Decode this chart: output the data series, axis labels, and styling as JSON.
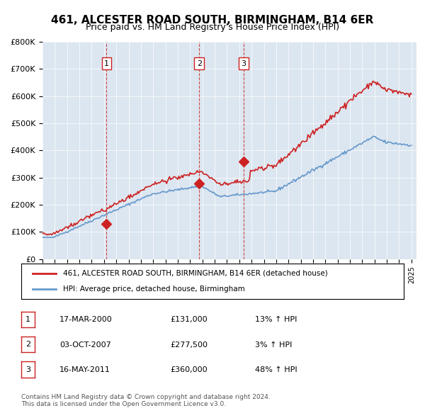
{
  "title": "461, ALCESTER ROAD SOUTH, BIRMINGHAM, B14 6ER",
  "subtitle": "Price paid vs. HM Land Registry's House Price Index (HPI)",
  "title_fontsize": 12,
  "subtitle_fontsize": 10,
  "background_color": "#dce6f0",
  "plot_bg_color": "#dce6f0",
  "ylim": [
    0,
    800000
  ],
  "yticks": [
    0,
    100000,
    200000,
    300000,
    400000,
    500000,
    600000,
    700000,
    800000
  ],
  "ytick_labels": [
    "£0",
    "£100K",
    "£200K",
    "£300K",
    "£400K",
    "£500K",
    "£600K",
    "£700K",
    "£800K"
  ],
  "hpi_color": "#6699cc",
  "price_color": "#cc2222",
  "sale_color": "#cc2222",
  "vline_color": "#cc2222",
  "legend_label_price": "461, ALCESTER ROAD SOUTH, BIRMINGHAM, B14 6ER (detached house)",
  "legend_label_hpi": "HPI: Average price, detached house, Birmingham",
  "sale_dates": [
    "2000-03-17",
    "2007-10-03",
    "2011-05-16"
  ],
  "sale_prices": [
    131000,
    277500,
    360000
  ],
  "sale_labels": [
    "1",
    "2",
    "3"
  ],
  "sale_info": [
    {
      "label": "1",
      "date": "17-MAR-2000",
      "price": "£131,000",
      "hpi": "13% ↑ HPI"
    },
    {
      "label": "2",
      "date": "03-OCT-2007",
      "price": "£277,500",
      "hpi": "3% ↑ HPI"
    },
    {
      "label": "3",
      "date": "16-MAY-2011",
      "price": "£360,000",
      "hpi": "48% ↑ HPI"
    }
  ],
  "footer": "Contains HM Land Registry data © Crown copyright and database right 2024.\nThis data is licensed under the Open Government Licence v3.0.",
  "x_start_year": 1995,
  "x_end_year": 2025
}
